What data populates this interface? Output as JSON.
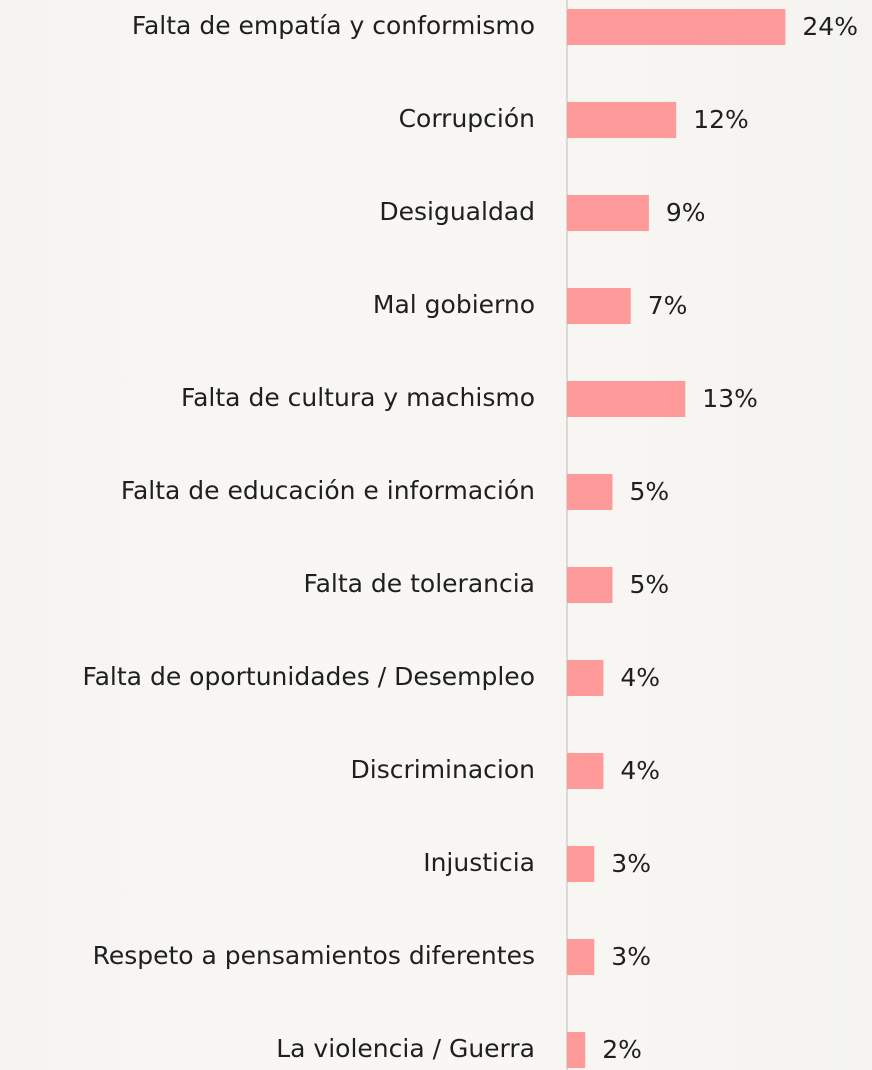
{
  "chart_data": {
    "type": "bar",
    "orientation": "horizontal",
    "categories": [
      "Falta de empatía y conformismo",
      "Corrupción",
      "Desigualdad",
      "Mal gobierno",
      "Falta de cultura y machismo",
      "Falta de educación e información",
      "Falta de tolerancia",
      "Falta de oportunidades / Desempleo",
      "Discriminacion",
      "Injusticia",
      "Respeto a pensamientos diferentes",
      "La violencia / Guerra"
    ],
    "values": [
      24,
      12,
      9,
      7,
      13,
      5,
      5,
      4,
      4,
      3,
      3,
      2
    ],
    "value_labels": [
      "24%",
      "12%",
      "9%",
      "7%",
      "13%",
      "5%",
      "5%",
      "4%",
      "4%",
      "3%",
      "3%",
      "2%"
    ],
    "color": "#ff9a9a"
  }
}
